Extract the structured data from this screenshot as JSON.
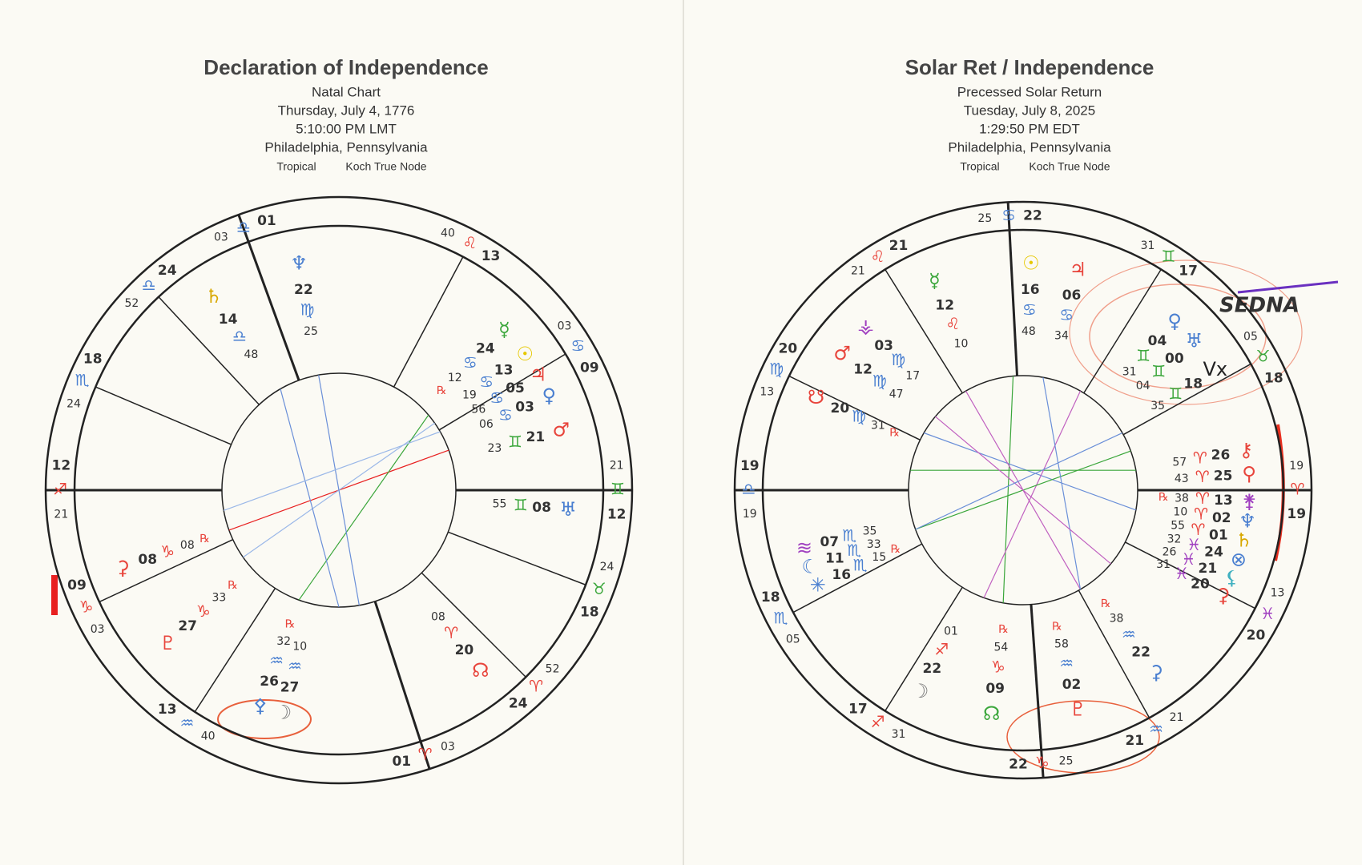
{
  "charts": [
    {
      "title": "Declaration of Independence",
      "subtitle": "Natal Chart",
      "date": "Thursday, July 4, 1776",
      "time": "5:10:00 PM LMT",
      "place": "Philadelphia, Pennsylvania",
      "zodiac": "Tropical",
      "house_system": "Koch True Node",
      "cusps": [
        {
          "deg": "12",
          "sign": "♐",
          "min": "21",
          "color": "#e8453c"
        },
        {
          "deg": "09",
          "sign": "♑",
          "min": "03",
          "color": "#e8453c"
        },
        {
          "deg": "13",
          "sign": "♒",
          "min": "40",
          "color": "#4a7fd0"
        },
        {
          "deg": "01",
          "sign": "♈",
          "min": "03",
          "color": "#e8453c"
        },
        {
          "deg": "24",
          "sign": "♈",
          "min": "52",
          "color": "#e8453c"
        },
        {
          "deg": "18",
          "sign": "♉",
          "min": "24",
          "color": "#3aa63a"
        },
        {
          "deg": "12",
          "sign": "♊",
          "min": "21",
          "color": "#3aa63a"
        },
        {
          "deg": "09",
          "sign": "♋",
          "min": "03",
          "color": "#4a7fd0"
        },
        {
          "deg": "13",
          "sign": "♌",
          "min": "40",
          "color": "#e8453c"
        },
        {
          "deg": "01",
          "sign": "♎",
          "min": "03",
          "color": "#4a7fd0"
        },
        {
          "deg": "24",
          "sign": "♎",
          "min": "52",
          "color": "#4a7fd0"
        },
        {
          "deg": "18",
          "sign": "♏",
          "min": "24",
          "color": "#4a7fd0"
        }
      ],
      "planets": [
        {
          "glyph": "♆",
          "color": "#4a7fd0",
          "deg": "22",
          "sign": "♍",
          "min": "25"
        },
        {
          "glyph": "♄",
          "color": "#d8a800",
          "deg": "14",
          "sign": "♎",
          "min": "48"
        },
        {
          "glyph": "☿",
          "color": "#3aa63a",
          "deg": "24",
          "sign": "♋",
          "min": "12",
          "retrograde": "℞"
        },
        {
          "glyph": "☉",
          "color": "#e6c800",
          "deg": "13",
          "sign": "♋",
          "min": "19"
        },
        {
          "glyph": "♃",
          "color": "#e8453c",
          "deg": "05",
          "sign": "♋",
          "min": "56"
        },
        {
          "glyph": "♀",
          "color": "#4a7fd0",
          "deg": "03",
          "sign": "♋",
          "min": "06"
        },
        {
          "glyph": "♂",
          "color": "#e8453c",
          "deg": "21",
          "sign": "♊",
          "min": "23"
        },
        {
          "glyph": "♅",
          "color": "#4a7fd0",
          "deg": "08",
          "sign": "♊",
          "min": "55"
        },
        {
          "glyph": "☊",
          "color": "#e8453c",
          "deg": "20",
          "sign": "♈",
          "min": "08"
        },
        {
          "glyph": "☽",
          "color": "#777777",
          "deg": "27",
          "sign": "♒",
          "min": "10"
        },
        {
          "glyph": "⚴",
          "color": "#4a7fd0",
          "deg": "26",
          "sign": "♒",
          "min": "32",
          "retrograde": "℞"
        },
        {
          "glyph": "♇",
          "color": "#e8453c",
          "deg": "27",
          "sign": "♑",
          "min": "33",
          "retrograde": "℞"
        },
        {
          "glyph": "⚳",
          "color": "#e8453c",
          "deg": "08",
          "sign": "♑",
          "min": "08",
          "retrograde": "℞"
        }
      ]
    },
    {
      "title": "Solar Ret / Independence",
      "subtitle": "Precessed Solar Return",
      "date": "Tuesday, July 8, 2025",
      "time": "1:29:50 PM EDT",
      "place": "Philadelphia, Pennsylvania",
      "zodiac": "Tropical",
      "house_system": "Koch True Node",
      "cusps": [
        {
          "deg": "19",
          "sign": "♎",
          "min": "19",
          "color": "#4a7fd0"
        },
        {
          "deg": "18",
          "sign": "♏",
          "min": "05",
          "color": "#4a7fd0"
        },
        {
          "deg": "17",
          "sign": "♐",
          "min": "31",
          "color": "#e8453c"
        },
        {
          "deg": "22",
          "sign": "♑",
          "min": "25",
          "color": "#e8453c"
        },
        {
          "deg": "21",
          "sign": "♒",
          "min": "21",
          "color": "#4a7fd0"
        },
        {
          "deg": "20",
          "sign": "♓",
          "min": "13",
          "color": "#a040c0"
        },
        {
          "deg": "19",
          "sign": "♈",
          "min": "19",
          "color": "#e8453c"
        },
        {
          "deg": "18",
          "sign": "♉",
          "min": "05",
          "color": "#3aa63a"
        },
        {
          "deg": "17",
          "sign": "♊",
          "min": "31",
          "color": "#3aa63a"
        },
        {
          "deg": "22",
          "sign": "♋",
          "min": "25",
          "color": "#4a7fd0"
        },
        {
          "deg": "21",
          "sign": "♌",
          "min": "21",
          "color": "#e8453c"
        },
        {
          "deg": "20",
          "sign": "♍",
          "min": "13",
          "color": "#4a7fd0"
        }
      ],
      "planets": [
        {
          "glyph": "☉",
          "color": "#e6c800",
          "deg": "16",
          "sign": "♋",
          "min": "48"
        },
        {
          "glyph": "♃",
          "color": "#e8453c",
          "deg": "06",
          "sign": "♋",
          "min": "34"
        },
        {
          "glyph": "☿",
          "color": "#3aa63a",
          "deg": "12",
          "sign": "♌",
          "min": "10"
        },
        {
          "glyph": "⚶",
          "color": "#a040c0",
          "deg": "03",
          "sign": "♍",
          "min": "17"
        },
        {
          "glyph": "♂",
          "color": "#e8453c",
          "deg": "12",
          "sign": "♍",
          "min": "47"
        },
        {
          "glyph": "☋",
          "color": "#e8453c",
          "deg": "20",
          "sign": "♍",
          "min": "31",
          "retrograde": "℞"
        },
        {
          "glyph": "♀",
          "color": "#4a7fd0",
          "deg": "04",
          "sign": "♊",
          "min": "31"
        },
        {
          "glyph": "♅",
          "color": "#4a7fd0",
          "deg": "00",
          "sign": "♊",
          "min": "04"
        },
        {
          "glyph": "Vx",
          "color": "#222222",
          "deg": "18",
          "sign": "♊",
          "min": "35"
        },
        {
          "glyph": "⚷",
          "color": "#e8453c",
          "deg": "26",
          "sign": "♈",
          "min": "57"
        },
        {
          "glyph": "⚲",
          "color": "#e8453c",
          "deg": "25",
          "sign": "♈",
          "min": "43"
        },
        {
          "glyph": "⚵",
          "color": "#a040c0",
          "deg": "13",
          "sign": "♈",
          "min": "38",
          "retrograde": "℞"
        },
        {
          "glyph": "♆",
          "color": "#4a7fd0",
          "deg": "02",
          "sign": "♈",
          "min": "10"
        },
        {
          "glyph": "♄",
          "color": "#d8a800",
          "deg": "01",
          "sign": "♈",
          "min": "55"
        },
        {
          "glyph": "⊗",
          "color": "#4a7fd0",
          "deg": "24",
          "sign": "♓",
          "min": "32"
        },
        {
          "glyph": "⚸",
          "color": "#40b0c0",
          "deg": "21",
          "sign": "♓",
          "min": "26"
        },
        {
          "glyph": "⚳",
          "color": "#e8453c",
          "deg": "20",
          "sign": "♓",
          "min": "31"
        },
        {
          "glyph": "≋",
          "color": "#a040c0",
          "deg": "07",
          "sign": "♏",
          "min": "35"
        },
        {
          "glyph": "☾",
          "color": "#4a7fd0",
          "deg": "11",
          "sign": "♏",
          "min": "33"
        },
        {
          "glyph": "✳",
          "color": "#4a7fd0",
          "deg": "16",
          "sign": "♏",
          "min": "15",
          "retrograde": "℞"
        },
        {
          "glyph": "☽",
          "color": "#777777",
          "deg": "22",
          "sign": "♐",
          "min": "01"
        },
        {
          "glyph": "☊",
          "color": "#3aa63a",
          "deg": "09",
          "sign": "♑",
          "min": "54",
          "retrograde": "℞"
        },
        {
          "glyph": "♇",
          "color": "#e8453c",
          "deg": "02",
          "sign": "♒",
          "min": "58",
          "retrograde": "℞"
        },
        {
          "glyph": "⚳",
          "color": "#4a7fd0",
          "deg": "22",
          "sign": "♒",
          "min": "38",
          "retrograde": "℞"
        }
      ]
    }
  ],
  "annotations": [
    {
      "text": "SEDNA"
    }
  ]
}
